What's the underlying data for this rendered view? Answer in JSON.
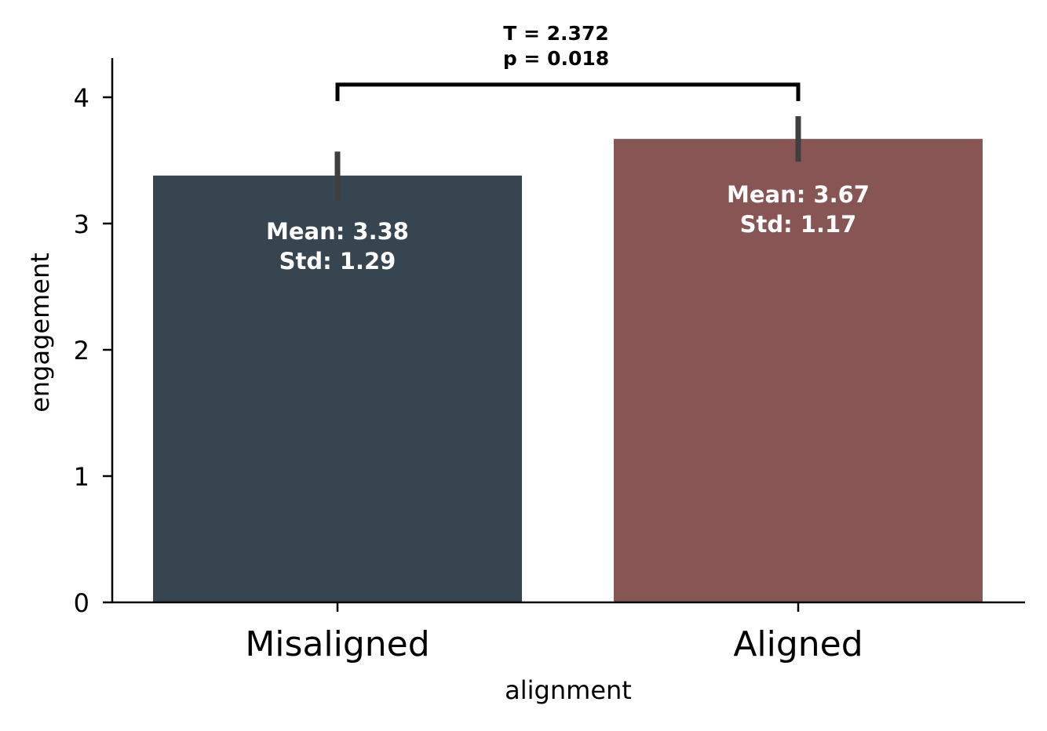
{
  "chart_data": {
    "type": "bar",
    "title": "",
    "xlabel": "alignment",
    "ylabel": "engagement",
    "ylim": [
      0,
      4.3
    ],
    "yticks": [
      0,
      1,
      2,
      3,
      4
    ],
    "ytick_labels": [
      "0",
      "1",
      "2",
      "3",
      "4"
    ],
    "grid": false,
    "categories": [
      "Misaligned",
      "Aligned"
    ],
    "values": [
      3.38,
      3.67
    ],
    "error_low": [
      3.18,
      3.49
    ],
    "error_high": [
      3.57,
      3.85
    ],
    "colors": [
      "#36454f",
      "#875554"
    ],
    "annotations": [
      {
        "line1": "Mean: 3.38",
        "line2": "Std: 1.29"
      },
      {
        "line1": "Mean: 3.67",
        "line2": "Std: 1.17"
      }
    ],
    "significance": {
      "bracket_y": 4.1,
      "line1": "T = 2.372",
      "line2": "p = 0.018"
    }
  }
}
